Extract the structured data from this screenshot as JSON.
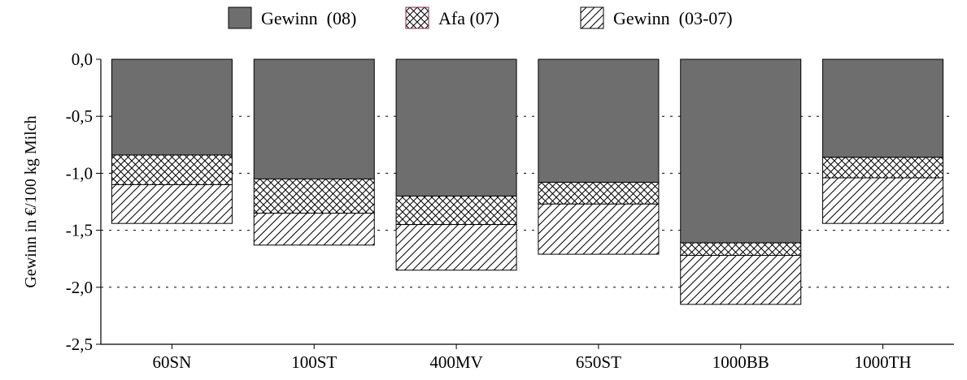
{
  "chart_data": {
    "type": "bar",
    "stacked": true,
    "categories": [
      "60SN",
      "100ST",
      "400MV",
      "650ST",
      "1000BB",
      "1000TH"
    ],
    "series": [
      {
        "name": "Gewinn  (08)",
        "values": [
          -0.84,
          -1.05,
          -1.2,
          -1.08,
          -1.61,
          -0.86
        ],
        "color": "#6e6e6e",
        "pattern": "solid"
      },
      {
        "name": "Afa (07)",
        "values": [
          -0.26,
          -0.3,
          -0.25,
          -0.19,
          -0.11,
          -0.18
        ],
        "color": "#000000",
        "pattern": "crosshatch"
      },
      {
        "name": "Gewinn  (03-07)",
        "values": [
          -0.34,
          -0.28,
          -0.4,
          -0.44,
          -0.43,
          -0.4
        ],
        "color": "#000000",
        "pattern": "diagonal"
      }
    ],
    "ylabel": "Gewinn in €/100 kg Milch",
    "xlabel": "",
    "ylim": [
      -2.5,
      0
    ],
    "yticks": [
      0,
      -0.5,
      -1,
      -1.5,
      -2,
      -2.5
    ],
    "ytick_labels": [
      "0,0",
      "-0,5",
      "-1,0",
      "-1,5",
      "-2,0",
      "-2,5"
    ],
    "grid": "dotted-horizontal",
    "legend": "top-center"
  }
}
